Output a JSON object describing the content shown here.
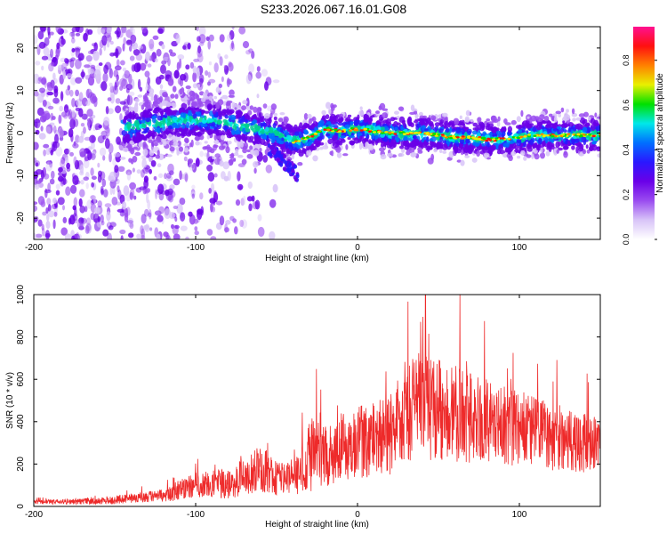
{
  "title": "S233.2026.067.16.01.G08",
  "chart_data": [
    {
      "type": "heatmap",
      "name": "spectrogram",
      "xlabel": "Height of straight line (km)",
      "ylabel": "Frequency (Hz)",
      "xlim": [
        -200,
        150
      ],
      "ylim": [
        -25,
        25
      ],
      "xticks": [
        -200,
        -100,
        0,
        100
      ],
      "xtick_labels": [
        "-200",
        "-100",
        "0",
        "100"
      ],
      "yticks": [
        20,
        10,
        0,
        -10,
        -20
      ],
      "ytick_labels": [
        "20",
        "10",
        "0",
        "-10",
        "-20"
      ],
      "ridge": {
        "x": [
          -145,
          -130,
          -110,
          -90,
          -70,
          -50,
          -40,
          -30,
          -20,
          -10,
          0,
          10,
          20,
          30,
          40,
          50,
          60,
          70,
          80,
          90,
          100,
          110,
          120,
          130,
          140,
          150
        ],
        "freq": [
          1,
          2,
          3,
          3,
          1.5,
          0,
          -2,
          -1,
          1,
          0.5,
          1,
          0.5,
          0,
          0,
          0,
          -0.5,
          -1,
          -1,
          -1.5,
          -1.5,
          -1,
          -0.5,
          -0.5,
          -0.5,
          -0.5,
          -0.5
        ]
      },
      "colorbar": {
        "label": "Normalized spectral amplitude",
        "range": [
          0.0,
          0.95
        ],
        "ticks": [
          0.0,
          0.2,
          0.4,
          0.6,
          0.8
        ],
        "tick_labels": [
          "0.0",
          "0.2",
          "0.4",
          "0.6",
          "0.8"
        ],
        "colors": [
          "#ffffff",
          "#d8c4f8",
          "#9a4cf0",
          "#6a00e8",
          "#2a18ff",
          "#0070ff",
          "#00e8e8",
          "#00e000",
          "#e8f000",
          "#ff8000",
          "#ff1010",
          "#ff1090"
        ]
      }
    },
    {
      "type": "line",
      "name": "snr",
      "xlabel": "Height of straight line (km)",
      "ylabel": "SNR (10 * v/v)",
      "xlim": [
        -200,
        150
      ],
      "ylim": [
        0,
        1000
      ],
      "xticks": [
        -200,
        -100,
        0,
        100
      ],
      "xtick_labels": [
        "-200",
        "-100",
        "0",
        "100"
      ],
      "yticks": [
        0,
        200,
        400,
        600,
        800,
        1000
      ],
      "ytick_labels": [
        "0",
        "200",
        "400",
        "600",
        "800",
        "1000"
      ],
      "color": "#ee2a2a",
      "envelope": {
        "x": [
          -200,
          -160,
          -150,
          -140,
          -120,
          -110,
          -100,
          -90,
          -80,
          -70,
          -60,
          -50,
          -40,
          -35,
          -30,
          -20,
          -10,
          0,
          10,
          20,
          25,
          30,
          40,
          50,
          60,
          80,
          100,
          120,
          140,
          150
        ],
        "base": [
          20,
          25,
          30,
          40,
          50,
          80,
          100,
          110,
          100,
          140,
          180,
          140,
          120,
          180,
          230,
          250,
          280,
          300,
          320,
          340,
          420,
          450,
          460,
          460,
          440,
          400,
          370,
          330,
          300,
          290
        ],
        "spread": [
          10,
          15,
          20,
          25,
          30,
          50,
          60,
          70,
          70,
          90,
          110,
          90,
          90,
          120,
          170,
          160,
          160,
          170,
          180,
          200,
          220,
          240,
          250,
          240,
          230,
          200,
          180,
          160,
          140,
          130
        ]
      },
      "peak": {
        "x": 42,
        "y": 1000
      }
    }
  ]
}
